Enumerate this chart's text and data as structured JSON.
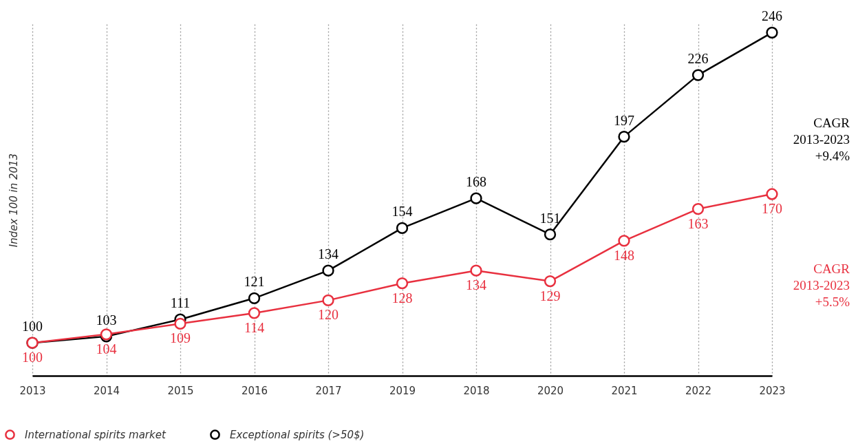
{
  "chart_data": {
    "type": "line",
    "ylabel": "Index 100 in 2013",
    "categories": [
      "2013",
      "2014",
      "2015",
      "2016",
      "2017",
      "2019",
      "2018",
      "2020",
      "2021",
      "2022",
      "2023"
    ],
    "series": [
      {
        "name": "International spirits market",
        "color": "#e8303f",
        "values": [
          100,
          104,
          109,
          114,
          120,
          128,
          134,
          129,
          148,
          163,
          170
        ]
      },
      {
        "name": "Exceptional spirits (>50$)",
        "color": "#000000",
        "values": [
          100,
          103,
          111,
          121,
          134,
          154,
          168,
          151,
          197,
          226,
          246
        ]
      }
    ],
    "ylim": [
      84.5,
      250
    ],
    "tick_labels": "x",
    "grid": "x",
    "legend": "bottom left",
    "marker": "circle",
    "line_style": "solid",
    "data_labels": true,
    "annotations": [
      "CAGR\n2013-2023\n+9.4%",
      "CAGR\n2013-2023\n+5.5%"
    ]
  }
}
